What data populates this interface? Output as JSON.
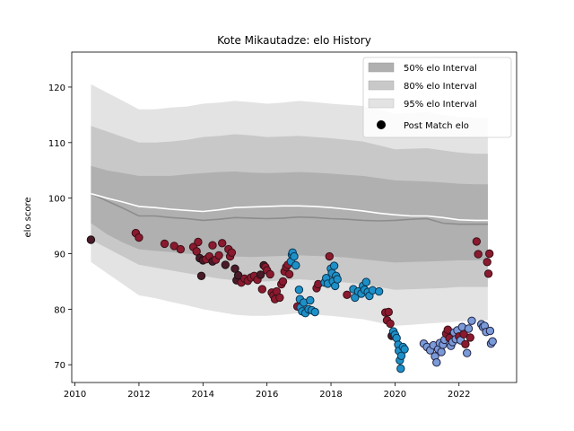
{
  "chart_data": {
    "type": "scatter",
    "title": "Kote Mikautadze: elo History",
    "xlabel": "",
    "ylabel": "elo score",
    "xlim": [
      2009.9,
      2023.8
    ],
    "ylim": [
      66.8,
      126.3
    ],
    "x_ticks": [
      2010,
      2012,
      2014,
      2016,
      2018,
      2020,
      2022
    ],
    "y_ticks": [
      70,
      80,
      90,
      100,
      110,
      120
    ],
    "legend": {
      "placement": "top-right",
      "entries": [
        "50% elo Interval",
        "80% elo Interval",
        "95% elo Interval",
        "Post Match elo"
      ]
    },
    "colors": {
      "band_95": "#e3e3e3",
      "band_80": "#c8c8c8",
      "band_50": "#b0b0b0",
      "median_line": "#8c8c8c",
      "mean_line": "#ffffff",
      "point_dark": "#4a1a28",
      "point_red": "#8b1a2e",
      "point_cyan": "#1e90c8",
      "point_lightblue": "#7a9ad8",
      "point_edge": "#222244"
    },
    "bands": {
      "x": [
        2010.5,
        2011.0,
        2011.5,
        2012.0,
        2012.5,
        2013.0,
        2013.5,
        2014.0,
        2014.5,
        2015.0,
        2015.5,
        2016.0,
        2016.5,
        2017.0,
        2017.5,
        2018.0,
        2018.5,
        2019.0,
        2019.5,
        2020.0,
        2020.5,
        2021.0,
        2021.5,
        2022.0,
        2022.5,
        2022.9
      ],
      "p95_upper": [
        120.5,
        119.0,
        117.5,
        116.0,
        116.0,
        116.3,
        116.5,
        117.0,
        117.2,
        117.5,
        117.3,
        117.0,
        117.2,
        117.5,
        117.3,
        117.0,
        116.8,
        116.6,
        116.0,
        115.2,
        115.4,
        115.5,
        115.0,
        114.6,
        114.5,
        114.5
      ],
      "p80_upper": [
        113.0,
        112.0,
        111.0,
        110.0,
        110.0,
        110.2,
        110.5,
        111.0,
        111.2,
        111.5,
        111.3,
        111.0,
        111.1,
        111.2,
        111.0,
        110.8,
        110.5,
        110.2,
        109.5,
        108.8,
        108.9,
        109.0,
        108.6,
        108.2,
        108.0,
        108.0
      ],
      "p50_upper": [
        105.8,
        105.0,
        104.5,
        104.0,
        104.0,
        104.0,
        104.3,
        104.5,
        104.7,
        104.8,
        104.6,
        104.5,
        104.6,
        104.7,
        104.6,
        104.4,
        104.2,
        104.0,
        103.6,
        103.2,
        103.1,
        103.0,
        102.8,
        102.6,
        102.5,
        102.5
      ],
      "p50_lower": [
        95.5,
        93.5,
        92.0,
        90.8,
        90.5,
        90.3,
        90.0,
        89.8,
        89.6,
        89.5,
        89.4,
        89.5,
        89.6,
        89.7,
        89.6,
        89.5,
        89.3,
        89.0,
        88.7,
        88.4,
        88.5,
        88.6,
        88.7,
        88.8,
        88.8,
        88.8
      ],
      "p80_lower": [
        92.5,
        91.0,
        89.5,
        88.0,
        87.5,
        87.0,
        86.5,
        86.0,
        85.5,
        85.2,
        85.0,
        85.0,
        85.2,
        85.4,
        85.2,
        85.0,
        84.8,
        84.5,
        84.0,
        83.5,
        83.6,
        83.7,
        83.8,
        84.0,
        84.0,
        84.0
      ],
      "p95_lower": [
        88.5,
        86.5,
        84.5,
        82.5,
        82.0,
        81.3,
        80.7,
        80.0,
        79.5,
        79.0,
        78.8,
        78.8,
        79.0,
        79.3,
        79.0,
        78.8,
        78.5,
        78.2,
        77.6,
        77.0,
        77.2,
        77.4,
        77.6,
        77.8,
        77.9,
        78.0
      ],
      "median": [
        100.8,
        99.5,
        98.2,
        96.8,
        96.8,
        96.5,
        96.3,
        96.0,
        96.2,
        96.5,
        96.4,
        96.3,
        96.4,
        96.6,
        96.5,
        96.3,
        96.2,
        96.0,
        95.9,
        96.0,
        96.2,
        96.3,
        95.5,
        95.3,
        95.3,
        95.3
      ],
      "mean": [
        100.8,
        100.0,
        99.3,
        98.5,
        98.3,
        98.0,
        97.8,
        97.6,
        97.9,
        98.3,
        98.4,
        98.5,
        98.6,
        98.6,
        98.5,
        98.3,
        98.0,
        97.7,
        97.3,
        97.0,
        96.8,
        96.8,
        96.5,
        96.1,
        96.0,
        96.0
      ]
    },
    "points": [
      {
        "x": 2010.5,
        "y": 92.5,
        "c": "dark"
      },
      {
        "x": 2011.9,
        "y": 93.7,
        "c": "red"
      },
      {
        "x": 2012.0,
        "y": 92.9,
        "c": "red"
      },
      {
        "x": 2012.8,
        "y": 91.8,
        "c": "red"
      },
      {
        "x": 2013.1,
        "y": 91.4,
        "c": "red"
      },
      {
        "x": 2013.3,
        "y": 90.8,
        "c": "red"
      },
      {
        "x": 2013.7,
        "y": 91.2,
        "c": "red"
      },
      {
        "x": 2013.8,
        "y": 90.4,
        "c": "red"
      },
      {
        "x": 2013.85,
        "y": 92.1,
        "c": "red"
      },
      {
        "x": 2013.9,
        "y": 89.2,
        "c": "dark"
      },
      {
        "x": 2013.95,
        "y": 86.0,
        "c": "dark"
      },
      {
        "x": 2014.0,
        "y": 88.8,
        "c": "dark"
      },
      {
        "x": 2014.1,
        "y": 89.0,
        "c": "red"
      },
      {
        "x": 2014.2,
        "y": 89.5,
        "c": "red"
      },
      {
        "x": 2014.3,
        "y": 88.6,
        "c": "dark"
      },
      {
        "x": 2014.3,
        "y": 91.5,
        "c": "red"
      },
      {
        "x": 2014.4,
        "y": 88.9,
        "c": "red"
      },
      {
        "x": 2014.5,
        "y": 89.7,
        "c": "red"
      },
      {
        "x": 2014.6,
        "y": 91.9,
        "c": "red"
      },
      {
        "x": 2014.7,
        "y": 88.0,
        "c": "dark"
      },
      {
        "x": 2014.8,
        "y": 90.8,
        "c": "red"
      },
      {
        "x": 2014.85,
        "y": 89.5,
        "c": "red"
      },
      {
        "x": 2014.9,
        "y": 90.2,
        "c": "red"
      },
      {
        "x": 2015.0,
        "y": 87.3,
        "c": "dark"
      },
      {
        "x": 2015.05,
        "y": 85.2,
        "c": "dark"
      },
      {
        "x": 2015.1,
        "y": 86.1,
        "c": "dark"
      },
      {
        "x": 2015.2,
        "y": 84.8,
        "c": "red"
      },
      {
        "x": 2015.3,
        "y": 85.5,
        "c": "red"
      },
      {
        "x": 2015.4,
        "y": 85.1,
        "c": "red"
      },
      {
        "x": 2015.5,
        "y": 85.7,
        "c": "red"
      },
      {
        "x": 2015.6,
        "y": 86.0,
        "c": "red"
      },
      {
        "x": 2015.7,
        "y": 85.3,
        "c": "red"
      },
      {
        "x": 2015.8,
        "y": 86.2,
        "c": "dark"
      },
      {
        "x": 2015.85,
        "y": 83.6,
        "c": "red"
      },
      {
        "x": 2015.9,
        "y": 87.9,
        "c": "dark"
      },
      {
        "x": 2015.95,
        "y": 87.6,
        "c": "red"
      },
      {
        "x": 2016.0,
        "y": 87.0,
        "c": "red"
      },
      {
        "x": 2016.1,
        "y": 86.3,
        "c": "red"
      },
      {
        "x": 2016.15,
        "y": 83.0,
        "c": "red"
      },
      {
        "x": 2016.2,
        "y": 82.5,
        "c": "red"
      },
      {
        "x": 2016.25,
        "y": 81.8,
        "c": "red"
      },
      {
        "x": 2016.3,
        "y": 83.2,
        "c": "red"
      },
      {
        "x": 2016.4,
        "y": 82.1,
        "c": "red"
      },
      {
        "x": 2016.45,
        "y": 84.5,
        "c": "red"
      },
      {
        "x": 2016.5,
        "y": 85.0,
        "c": "red"
      },
      {
        "x": 2016.55,
        "y": 86.8,
        "c": "red"
      },
      {
        "x": 2016.6,
        "y": 87.6,
        "c": "red"
      },
      {
        "x": 2016.65,
        "y": 88.0,
        "c": "red"
      },
      {
        "x": 2016.7,
        "y": 86.3,
        "c": "red"
      },
      {
        "x": 2016.75,
        "y": 88.6,
        "c": "cyan"
      },
      {
        "x": 2016.78,
        "y": 89.8,
        "c": "cyan"
      },
      {
        "x": 2016.8,
        "y": 90.2,
        "c": "cyan"
      },
      {
        "x": 2016.85,
        "y": 89.5,
        "c": "cyan"
      },
      {
        "x": 2016.9,
        "y": 87.9,
        "c": "cyan"
      },
      {
        "x": 2016.95,
        "y": 80.5,
        "c": "red"
      },
      {
        "x": 2017.0,
        "y": 83.5,
        "c": "cyan"
      },
      {
        "x": 2017.03,
        "y": 81.8,
        "c": "cyan"
      },
      {
        "x": 2017.05,
        "y": 80.3,
        "c": "cyan"
      },
      {
        "x": 2017.1,
        "y": 79.6,
        "c": "cyan"
      },
      {
        "x": 2017.15,
        "y": 81.2,
        "c": "cyan"
      },
      {
        "x": 2017.2,
        "y": 79.3,
        "c": "cyan"
      },
      {
        "x": 2017.3,
        "y": 80.0,
        "c": "cyan"
      },
      {
        "x": 2017.35,
        "y": 81.6,
        "c": "cyan"
      },
      {
        "x": 2017.4,
        "y": 79.8,
        "c": "cyan"
      },
      {
        "x": 2017.5,
        "y": 79.5,
        "c": "cyan"
      },
      {
        "x": 2017.55,
        "y": 83.8,
        "c": "red"
      },
      {
        "x": 2017.6,
        "y": 84.5,
        "c": "red"
      },
      {
        "x": 2017.8,
        "y": 84.8,
        "c": "cyan"
      },
      {
        "x": 2017.85,
        "y": 85.6,
        "c": "cyan"
      },
      {
        "x": 2017.9,
        "y": 84.6,
        "c": "cyan"
      },
      {
        "x": 2017.95,
        "y": 89.5,
        "c": "red"
      },
      {
        "x": 2018.0,
        "y": 87.3,
        "c": "cyan"
      },
      {
        "x": 2018.03,
        "y": 86.5,
        "c": "cyan"
      },
      {
        "x": 2018.06,
        "y": 85.0,
        "c": "cyan"
      },
      {
        "x": 2018.1,
        "y": 87.8,
        "c": "cyan"
      },
      {
        "x": 2018.13,
        "y": 84.2,
        "c": "cyan"
      },
      {
        "x": 2018.16,
        "y": 86.0,
        "c": "cyan"
      },
      {
        "x": 2018.2,
        "y": 85.4,
        "c": "cyan"
      },
      {
        "x": 2018.5,
        "y": 82.6,
        "c": "red"
      },
      {
        "x": 2018.7,
        "y": 83.6,
        "c": "cyan"
      },
      {
        "x": 2018.75,
        "y": 82.1,
        "c": "cyan"
      },
      {
        "x": 2018.85,
        "y": 83.2,
        "c": "cyan"
      },
      {
        "x": 2018.95,
        "y": 82.8,
        "c": "cyan"
      },
      {
        "x": 2019.0,
        "y": 84.2,
        "c": "cyan"
      },
      {
        "x": 2019.05,
        "y": 83.5,
        "c": "cyan"
      },
      {
        "x": 2019.1,
        "y": 84.9,
        "c": "cyan"
      },
      {
        "x": 2019.15,
        "y": 83.1,
        "c": "cyan"
      },
      {
        "x": 2019.2,
        "y": 82.4,
        "c": "cyan"
      },
      {
        "x": 2019.3,
        "y": 83.4,
        "c": "cyan"
      },
      {
        "x": 2019.5,
        "y": 83.2,
        "c": "cyan"
      },
      {
        "x": 2019.7,
        "y": 79.4,
        "c": "red"
      },
      {
        "x": 2019.75,
        "y": 78.0,
        "c": "red"
      },
      {
        "x": 2019.8,
        "y": 79.5,
        "c": "red"
      },
      {
        "x": 2019.85,
        "y": 77.4,
        "c": "red"
      },
      {
        "x": 2019.9,
        "y": 75.2,
        "c": "dark"
      },
      {
        "x": 2019.95,
        "y": 76.0,
        "c": "cyan"
      },
      {
        "x": 2020.0,
        "y": 75.4,
        "c": "cyan"
      },
      {
        "x": 2020.05,
        "y": 74.8,
        "c": "cyan"
      },
      {
        "x": 2020.1,
        "y": 73.6,
        "c": "cyan"
      },
      {
        "x": 2020.12,
        "y": 72.5,
        "c": "cyan"
      },
      {
        "x": 2020.15,
        "y": 70.8,
        "c": "cyan"
      },
      {
        "x": 2020.18,
        "y": 69.3,
        "c": "cyan"
      },
      {
        "x": 2020.2,
        "y": 71.6,
        "c": "cyan"
      },
      {
        "x": 2020.25,
        "y": 73.2,
        "c": "cyan"
      },
      {
        "x": 2020.3,
        "y": 72.8,
        "c": "cyan"
      },
      {
        "x": 2020.9,
        "y": 73.8,
        "c": "lightblue"
      },
      {
        "x": 2021.0,
        "y": 73.2,
        "c": "lightblue"
      },
      {
        "x": 2021.1,
        "y": 72.6,
        "c": "lightblue"
      },
      {
        "x": 2021.2,
        "y": 73.5,
        "c": "lightblue"
      },
      {
        "x": 2021.25,
        "y": 71.5,
        "c": "lightblue"
      },
      {
        "x": 2021.3,
        "y": 70.4,
        "c": "lightblue"
      },
      {
        "x": 2021.35,
        "y": 72.8,
        "c": "lightblue"
      },
      {
        "x": 2021.4,
        "y": 73.9,
        "c": "lightblue"
      },
      {
        "x": 2021.45,
        "y": 72.3,
        "c": "lightblue"
      },
      {
        "x": 2021.5,
        "y": 73.6,
        "c": "lightblue"
      },
      {
        "x": 2021.55,
        "y": 74.5,
        "c": "lightblue"
      },
      {
        "x": 2021.6,
        "y": 75.6,
        "c": "red"
      },
      {
        "x": 2021.65,
        "y": 76.3,
        "c": "red"
      },
      {
        "x": 2021.7,
        "y": 74.8,
        "c": "red"
      },
      {
        "x": 2021.75,
        "y": 73.4,
        "c": "lightblue"
      },
      {
        "x": 2021.8,
        "y": 74.1,
        "c": "lightblue"
      },
      {
        "x": 2021.85,
        "y": 75.8,
        "c": "lightblue"
      },
      {
        "x": 2021.9,
        "y": 74.6,
        "c": "lightblue"
      },
      {
        "x": 2021.95,
        "y": 76.2,
        "c": "lightblue"
      },
      {
        "x": 2022.0,
        "y": 75.1,
        "c": "red"
      },
      {
        "x": 2022.05,
        "y": 74.4,
        "c": "lightblue"
      },
      {
        "x": 2022.1,
        "y": 76.8,
        "c": "lightblue"
      },
      {
        "x": 2022.15,
        "y": 75.5,
        "c": "red"
      },
      {
        "x": 2022.2,
        "y": 73.7,
        "c": "red"
      },
      {
        "x": 2022.25,
        "y": 72.1,
        "c": "lightblue"
      },
      {
        "x": 2022.3,
        "y": 76.5,
        "c": "lightblue"
      },
      {
        "x": 2022.35,
        "y": 74.9,
        "c": "red"
      },
      {
        "x": 2022.4,
        "y": 77.9,
        "c": "lightblue"
      },
      {
        "x": 2022.55,
        "y": 92.2,
        "c": "red"
      },
      {
        "x": 2022.6,
        "y": 89.9,
        "c": "red"
      },
      {
        "x": 2022.7,
        "y": 77.3,
        "c": "lightblue"
      },
      {
        "x": 2022.75,
        "y": 76.8,
        "c": "lightblue"
      },
      {
        "x": 2022.8,
        "y": 77.0,
        "c": "lightblue"
      },
      {
        "x": 2022.85,
        "y": 75.9,
        "c": "lightblue"
      },
      {
        "x": 2022.88,
        "y": 88.5,
        "c": "red"
      },
      {
        "x": 2022.92,
        "y": 86.4,
        "c": "red"
      },
      {
        "x": 2022.95,
        "y": 90.0,
        "c": "red"
      },
      {
        "x": 2022.97,
        "y": 76.1,
        "c": "lightblue"
      },
      {
        "x": 2023.0,
        "y": 73.8,
        "c": "lightblue"
      },
      {
        "x": 2023.05,
        "y": 74.2,
        "c": "lightblue"
      }
    ]
  }
}
